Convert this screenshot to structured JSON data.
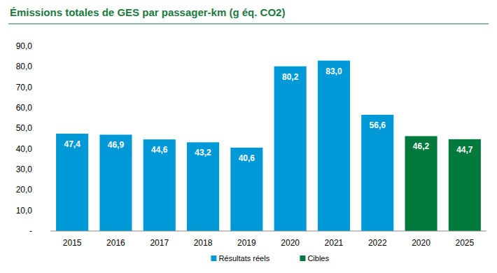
{
  "chart_data": {
    "type": "bar",
    "title": "Émissions totales de GES par passager-km (g éq. CO2)",
    "categories": [
      "2015",
      "2016",
      "2017",
      "2018",
      "2019",
      "2020",
      "2021",
      "2022",
      "2020",
      "2025"
    ],
    "series": [
      {
        "name": "Résultats réels",
        "color": "#0099d8",
        "values": [
          47.4,
          46.9,
          44.6,
          43.2,
          40.6,
          80.2,
          83.0,
          56.6,
          null,
          null
        ],
        "value_labels": [
          "47,4",
          "46,9",
          "44,6",
          "43,2",
          "40,6",
          "80,2",
          "83,0",
          "56,6",
          null,
          null
        ]
      },
      {
        "name": "Cibles",
        "color": "#007a3c",
        "values": [
          null,
          null,
          null,
          null,
          null,
          null,
          null,
          null,
          46.2,
          44.7
        ],
        "value_labels": [
          null,
          null,
          null,
          null,
          null,
          null,
          null,
          null,
          "46,2",
          "44,7"
        ]
      }
    ],
    "ylim": [
      0,
      90
    ],
    "yticks": [
      {
        "value": 0,
        "label": "-"
      },
      {
        "value": 10,
        "label": "10,0"
      },
      {
        "value": 20,
        "label": "20,0"
      },
      {
        "value": 30,
        "label": "30,0"
      },
      {
        "value": 40,
        "label": "40,0"
      },
      {
        "value": 50,
        "label": "50,0"
      },
      {
        "value": 60,
        "label": "60,0"
      },
      {
        "value": 70,
        "label": "70,0"
      },
      {
        "value": 80,
        "label": "80,0"
      },
      {
        "value": 90,
        "label": "90,0"
      }
    ],
    "grid": false,
    "legend": "bottom",
    "data_labels": true,
    "stacked": false
  }
}
